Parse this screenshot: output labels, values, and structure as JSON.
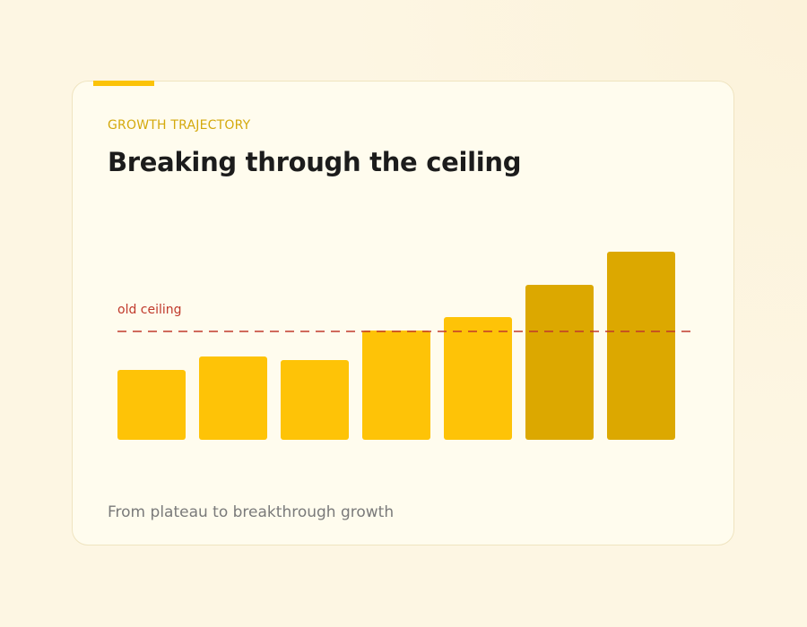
{
  "card": {
    "eyebrow": "GROWTH TRAJECTORY",
    "title": "Breaking through the ceiling",
    "caption": "From plateau to breakthrough growth"
  },
  "colors": {
    "background": "#fdf6e3",
    "card": "#fffcee",
    "accent": "#fbc308",
    "bar_normal": "#fec307",
    "bar_breakthrough": "#dca800",
    "ceiling_line": "#c0392b",
    "eyebrow": "#d4a90d"
  },
  "chart_data": {
    "type": "bar",
    "categories": [
      "",
      "",
      "",
      "",
      "",
      "",
      ""
    ],
    "values": [
      78,
      93,
      89,
      122,
      137,
      173,
      210
    ],
    "highlight": [
      false,
      false,
      false,
      false,
      false,
      true,
      true
    ],
    "ylim": [
      0,
      230
    ],
    "reference_line": {
      "label": "old ceiling",
      "value": 121,
      "style": "dashed"
    },
    "grid": false,
    "xlabel": "",
    "ylabel": ""
  }
}
